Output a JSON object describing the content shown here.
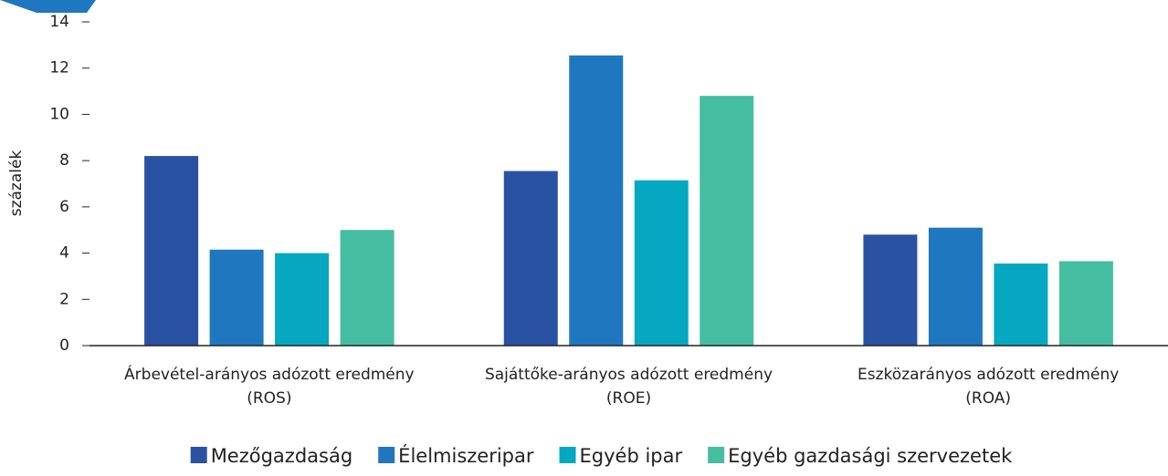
{
  "chart_data": {
    "type": "bar",
    "y_label": "százalék",
    "categories": [
      [
        "Árbevétel-arányos adózott eredmény",
        "(ROS)"
      ],
      [
        "Sajáttőke-arányos adózott eredmény",
        "(ROE)"
      ],
      [
        "Eszközarányos adózott eredmény",
        "(ROA)"
      ]
    ],
    "series": [
      {
        "name": "Mezőgazdaság",
        "color": "#2a52a3",
        "values": [
          8.2,
          7.55,
          4.8
        ]
      },
      {
        "name": "Élelmiszeripar",
        "color": "#1f77c0",
        "values": [
          4.15,
          12.55,
          5.1
        ]
      },
      {
        "name": "Egyéb ipar",
        "color": "#05a8c0",
        "values": [
          4.0,
          7.15,
          3.55
        ]
      },
      {
        "name": "Egyéb gazdasági szervezetek",
        "color": "#45bda0",
        "values": [
          5.0,
          10.8,
          3.65
        ]
      }
    ],
    "ylim": [
      0,
      14
    ],
    "yticks": [
      0,
      2,
      4,
      6,
      8,
      10,
      12,
      14
    ],
    "grid": false,
    "legend": "bottom"
  }
}
